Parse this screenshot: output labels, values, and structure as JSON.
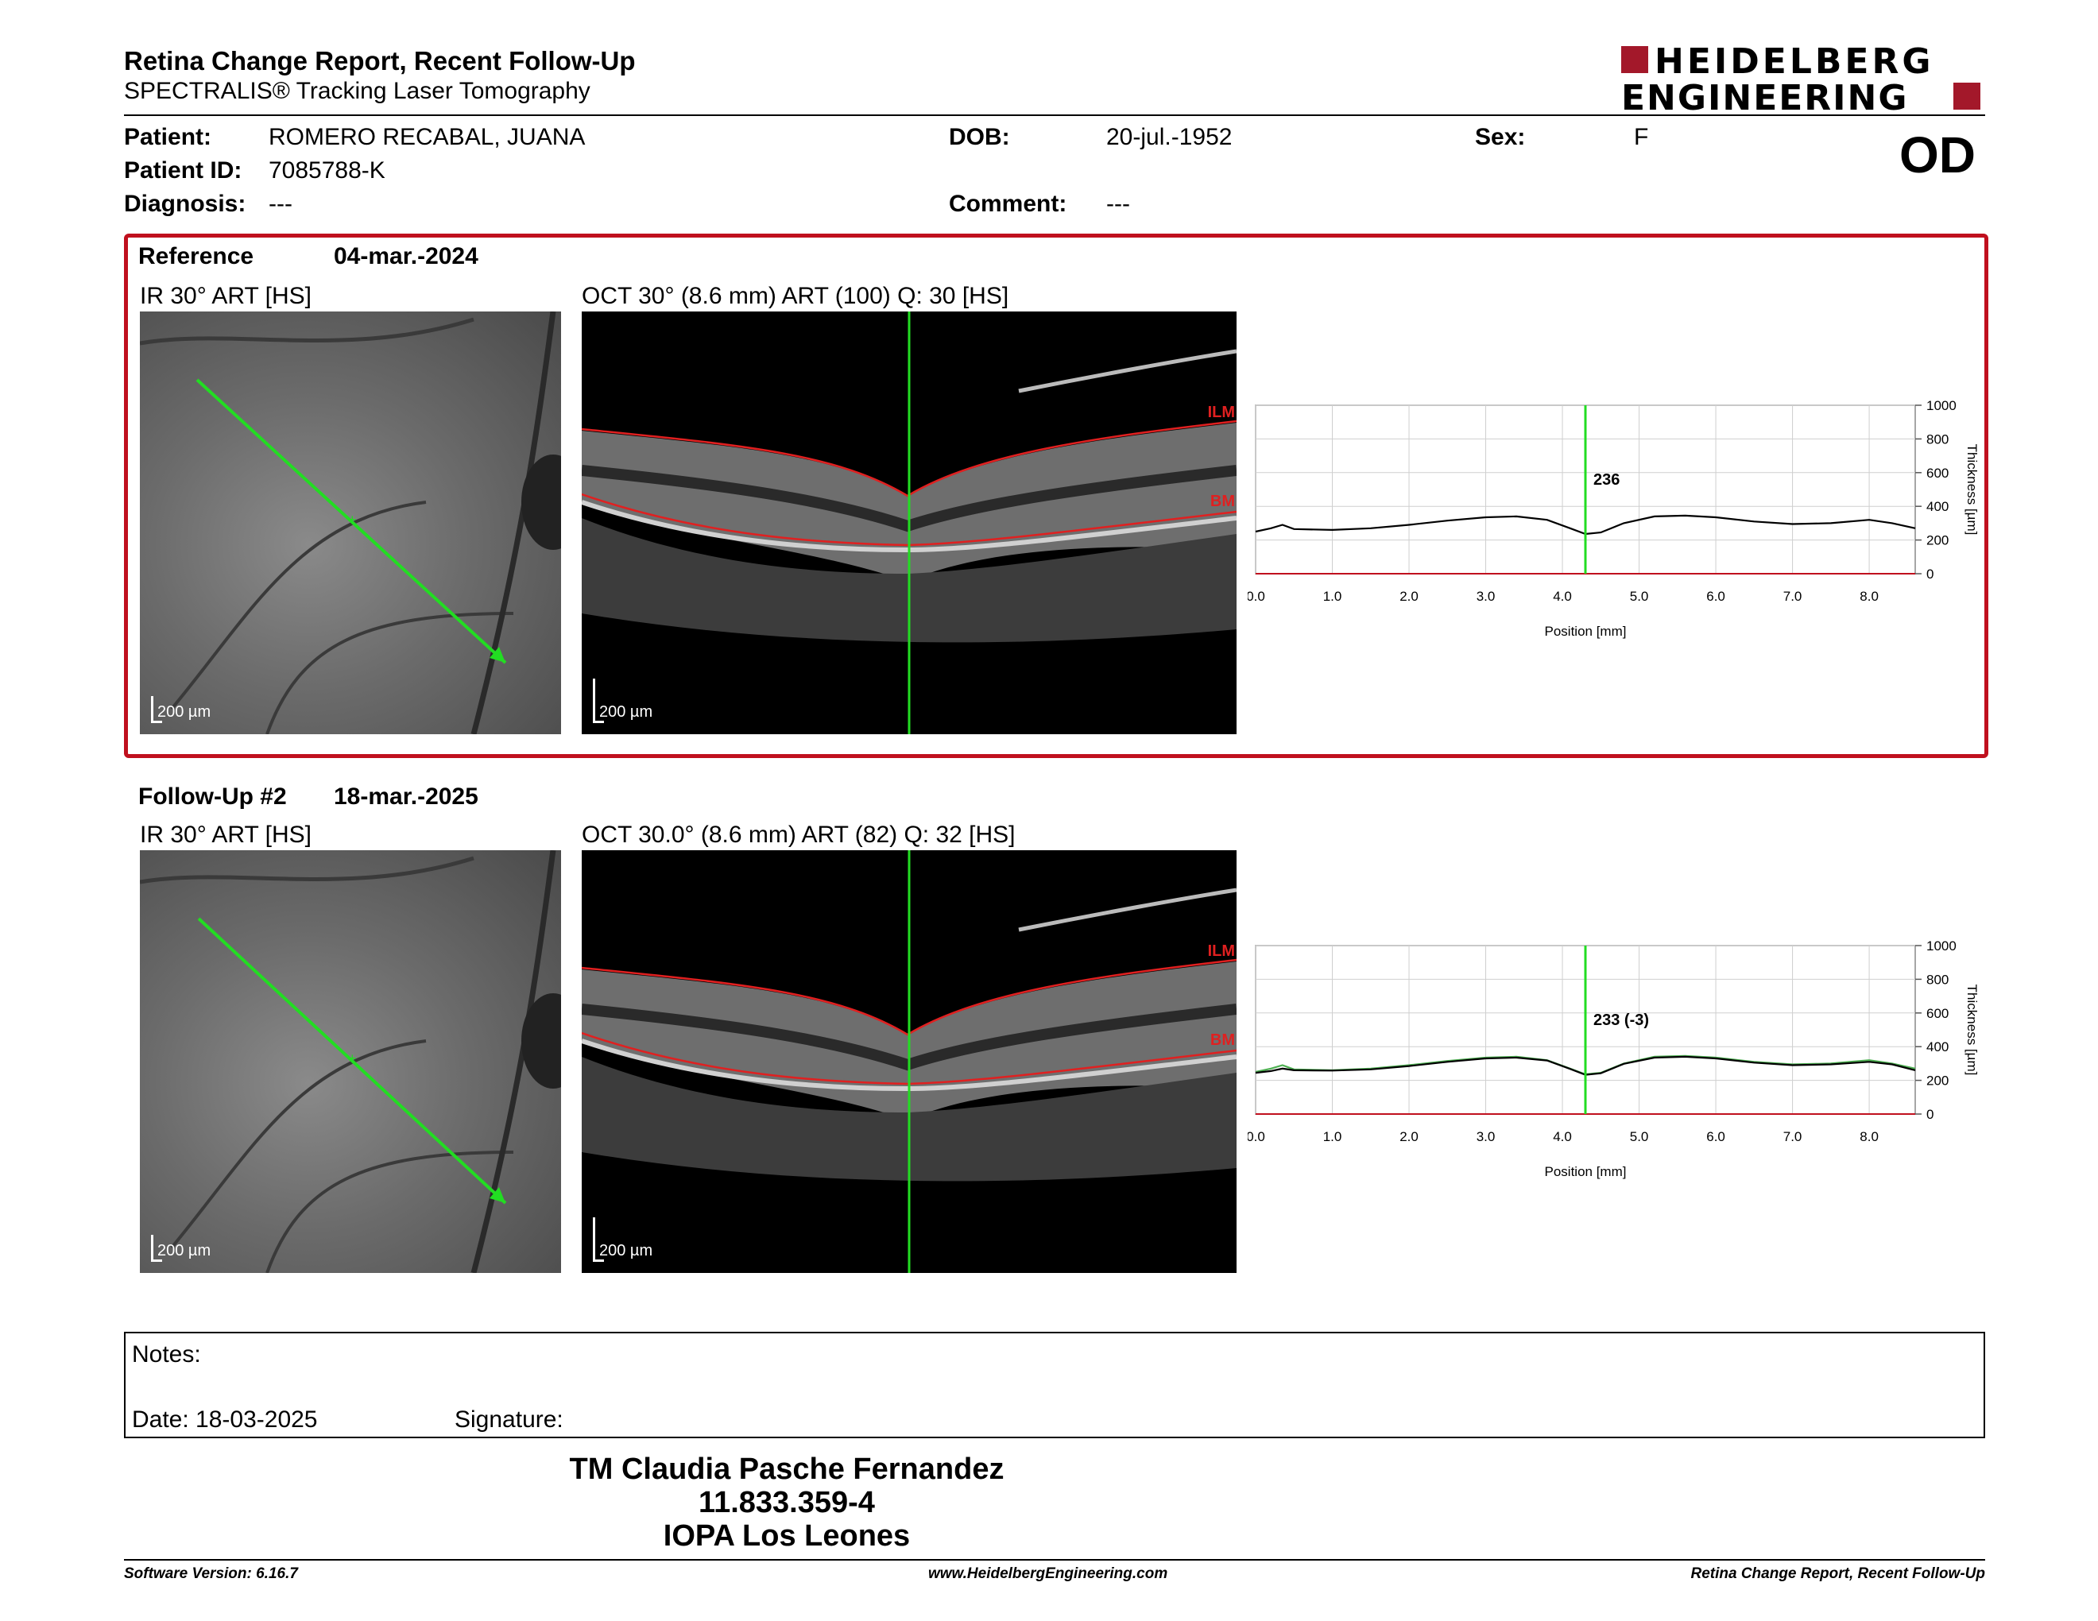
{
  "header": {
    "title": "Retina Change Report, Recent Follow-Up",
    "subtitle": "SPECTRALIS® Tracking Laser Tomography",
    "logo_line1": "HEIDELBERG",
    "logo_line2": "ENGINEERING",
    "eye": "OD"
  },
  "patient": {
    "patient_label": "Patient:",
    "patient_value": "ROMERO RECABAL, JUANA",
    "id_label": "Patient ID:",
    "id_value": "7085788-K",
    "diagnosis_label": "Diagnosis:",
    "diagnosis_value": "---",
    "dob_label": "DOB:",
    "dob_value": "20-jul.-1952",
    "comment_label": "Comment:",
    "comment_value": "---",
    "sex_label": "Sex:",
    "sex_value": "F"
  },
  "reference": {
    "label": "Reference",
    "date": "04-mar.-2024",
    "ir_title": "IR 30° ART [HS]",
    "oct_title": "OCT 30° (8.6 mm) ART (100) Q: 30 [HS]",
    "scale": "200 µm",
    "ilm": "ILM",
    "bm": "BM"
  },
  "followup": {
    "label": "Follow-Up #2",
    "date": "18-mar.-2025",
    "ir_title": "IR 30° ART [HS]",
    "oct_title": "OCT 30.0° (8.6 mm) ART (82) Q: 32 [HS]",
    "scale": "200 µm",
    "ilm": "ILM",
    "bm": "BM"
  },
  "chart_data": [
    {
      "type": "line",
      "xlabel": "Position [mm]",
      "ylabel": "Thickness [µm]",
      "xlim": [
        0,
        8.6
      ],
      "ylim": [
        0,
        1000
      ],
      "xticks": [
        "0.0",
        "1.0",
        "2.0",
        "3.0",
        "4.0",
        "5.0",
        "6.0",
        "7.0",
        "8.0"
      ],
      "yticks": [
        "0",
        "200",
        "400",
        "600",
        "800",
        "1000"
      ],
      "cursor_x": 4.3,
      "cursor_label": "236",
      "series": [
        {
          "color": "#000000",
          "x": [
            0,
            0.2,
            0.35,
            0.5,
            1.0,
            1.5,
            2.0,
            2.5,
            3.0,
            3.4,
            3.8,
            4.1,
            4.3,
            4.5,
            4.8,
            5.2,
            5.6,
            6.0,
            6.5,
            7.0,
            7.5,
            8.0,
            8.3,
            8.6
          ],
          "y": [
            250,
            270,
            290,
            265,
            260,
            270,
            290,
            315,
            335,
            340,
            320,
            270,
            236,
            245,
            300,
            340,
            345,
            335,
            310,
            295,
            300,
            320,
            300,
            270
          ]
        }
      ]
    },
    {
      "type": "line",
      "xlabel": "Position [mm]",
      "ylabel": "Thickness [µm]",
      "xlim": [
        0,
        8.6
      ],
      "ylim": [
        0,
        1000
      ],
      "xticks": [
        "0.0",
        "1.0",
        "2.0",
        "3.0",
        "4.0",
        "5.0",
        "6.0",
        "7.0",
        "8.0"
      ],
      "yticks": [
        "0",
        "200",
        "400",
        "600",
        "800",
        "1000"
      ],
      "cursor_x": 4.3,
      "cursor_label": "233 (-3)",
      "series": [
        {
          "color": "#4caf50",
          "x": [
            0,
            0.2,
            0.35,
            0.5,
            1.0,
            1.5,
            2.0,
            2.5,
            3.0,
            3.4,
            3.8,
            4.1,
            4.3,
            4.5,
            4.8,
            5.2,
            5.6,
            6.0,
            6.5,
            7.0,
            7.5,
            8.0,
            8.3,
            8.6
          ],
          "y": [
            250,
            270,
            290,
            265,
            260,
            270,
            290,
            315,
            335,
            340,
            320,
            270,
            236,
            245,
            300,
            340,
            345,
            335,
            310,
            295,
            300,
            320,
            300,
            270
          ]
        },
        {
          "color": "#000000",
          "x": [
            0,
            0.2,
            0.35,
            0.5,
            1.0,
            1.5,
            2.0,
            2.5,
            3.0,
            3.4,
            3.8,
            4.1,
            4.3,
            4.5,
            4.8,
            5.2,
            5.6,
            6.0,
            6.5,
            7.0,
            7.5,
            8.0,
            8.3,
            8.6
          ],
          "y": [
            245,
            255,
            270,
            260,
            258,
            265,
            285,
            310,
            330,
            335,
            318,
            268,
            233,
            242,
            298,
            335,
            340,
            330,
            305,
            290,
            295,
            310,
            295,
            260
          ]
        }
      ]
    }
  ],
  "notes": {
    "label": "Notes:",
    "date": "Date: 18-03-2025",
    "signature": "Signature:"
  },
  "signature_block": {
    "name": "TM Claudia Pasche Fernandez",
    "id": "11.833.359-4",
    "clinic": "IOPA Los Leones"
  },
  "footer": {
    "software": "Software Version: 6.16.7",
    "website": "www.HeidelbergEngineering.com",
    "report": "Retina Change Report, Recent Follow-Up"
  }
}
